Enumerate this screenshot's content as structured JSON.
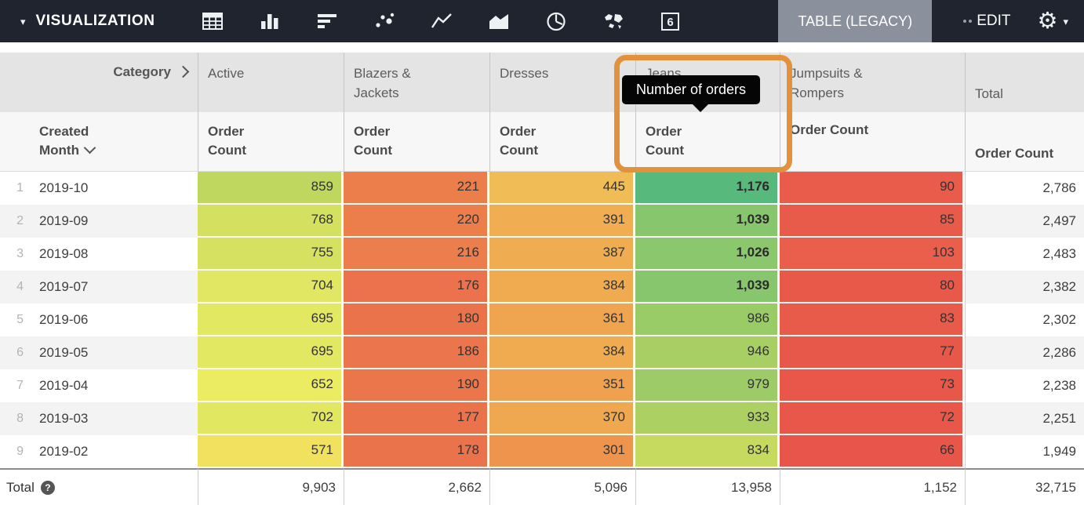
{
  "toolbar": {
    "visualization_label": "VISUALIZATION",
    "table_legacy_label": "TABLE (LEGACY)",
    "edit_label": "EDIT",
    "single_value_icon_text": "6",
    "icons": [
      "table-icon",
      "column-chart-icon",
      "bar-chart-icon",
      "scatter-plot-icon",
      "line-chart-icon",
      "area-chart-icon",
      "pie-chart-icon",
      "map-icon",
      "single-value-icon"
    ],
    "bg_color": "#20242e",
    "selected_tab_bg": "#8a919c"
  },
  "tooltip": {
    "text": "Number of orders",
    "bg": "#050505",
    "text_color": "#ffffff"
  },
  "highlight": {
    "color": "#e2923c"
  },
  "table": {
    "corner_label": "Category",
    "row_dimension_label": "Created Month",
    "measure_label": "Order Count",
    "total_column_label": "Total",
    "total_row_label": "Total",
    "help_glyph": "?",
    "categories": [
      "Active",
      "Blazers & Jackets",
      "Dresses",
      "Jeans",
      "Jumpsuits & Rompers"
    ],
    "heatmap": {
      "min": 66,
      "max": 1176,
      "stops": [
        "#e8554a",
        "#ef9f4e",
        "#f3ef63",
        "#b8d35e",
        "#57b97c"
      ],
      "bold_threshold": 1000
    },
    "rows": [
      {
        "num": "1",
        "month": "2019-10",
        "values": [
          859,
          221,
          445,
          1176,
          90
        ],
        "formatted": [
          "859",
          "221",
          "445",
          "1,176",
          "90"
        ],
        "row_total": "2,786"
      },
      {
        "num": "2",
        "month": "2019-09",
        "values": [
          768,
          220,
          391,
          1039,
          85
        ],
        "formatted": [
          "768",
          "220",
          "391",
          "1,039",
          "85"
        ],
        "row_total": "2,497"
      },
      {
        "num": "3",
        "month": "2019-08",
        "values": [
          755,
          216,
          387,
          1026,
          103
        ],
        "formatted": [
          "755",
          "216",
          "387",
          "1,026",
          "103"
        ],
        "row_total": "2,483"
      },
      {
        "num": "4",
        "month": "2019-07",
        "values": [
          704,
          176,
          384,
          1039,
          80
        ],
        "formatted": [
          "704",
          "176",
          "384",
          "1,039",
          "80"
        ],
        "row_total": "2,382"
      },
      {
        "num": "5",
        "month": "2019-06",
        "values": [
          695,
          180,
          361,
          986,
          83
        ],
        "formatted": [
          "695",
          "180",
          "361",
          "986",
          "83"
        ],
        "row_total": "2,302"
      },
      {
        "num": "6",
        "month": "2019-05",
        "values": [
          695,
          186,
          384,
          946,
          77
        ],
        "formatted": [
          "695",
          "186",
          "384",
          "946",
          "77"
        ],
        "row_total": "2,286"
      },
      {
        "num": "7",
        "month": "2019-04",
        "values": [
          652,
          190,
          351,
          979,
          73
        ],
        "formatted": [
          "652",
          "190",
          "351",
          "979",
          "73"
        ],
        "row_total": "2,238"
      },
      {
        "num": "8",
        "month": "2019-03",
        "values": [
          702,
          177,
          370,
          933,
          72
        ],
        "formatted": [
          "702",
          "177",
          "370",
          "933",
          "72"
        ],
        "row_total": "2,251"
      },
      {
        "num": "9",
        "month": "2019-02",
        "values": [
          571,
          178,
          301,
          834,
          66
        ],
        "formatted": [
          "571",
          "178",
          "301",
          "834",
          "66"
        ],
        "row_total": "1,949"
      }
    ],
    "column_totals": [
      "9,903",
      "2,662",
      "5,096",
      "13,958",
      "1,152"
    ],
    "grand_total": "32,715"
  }
}
